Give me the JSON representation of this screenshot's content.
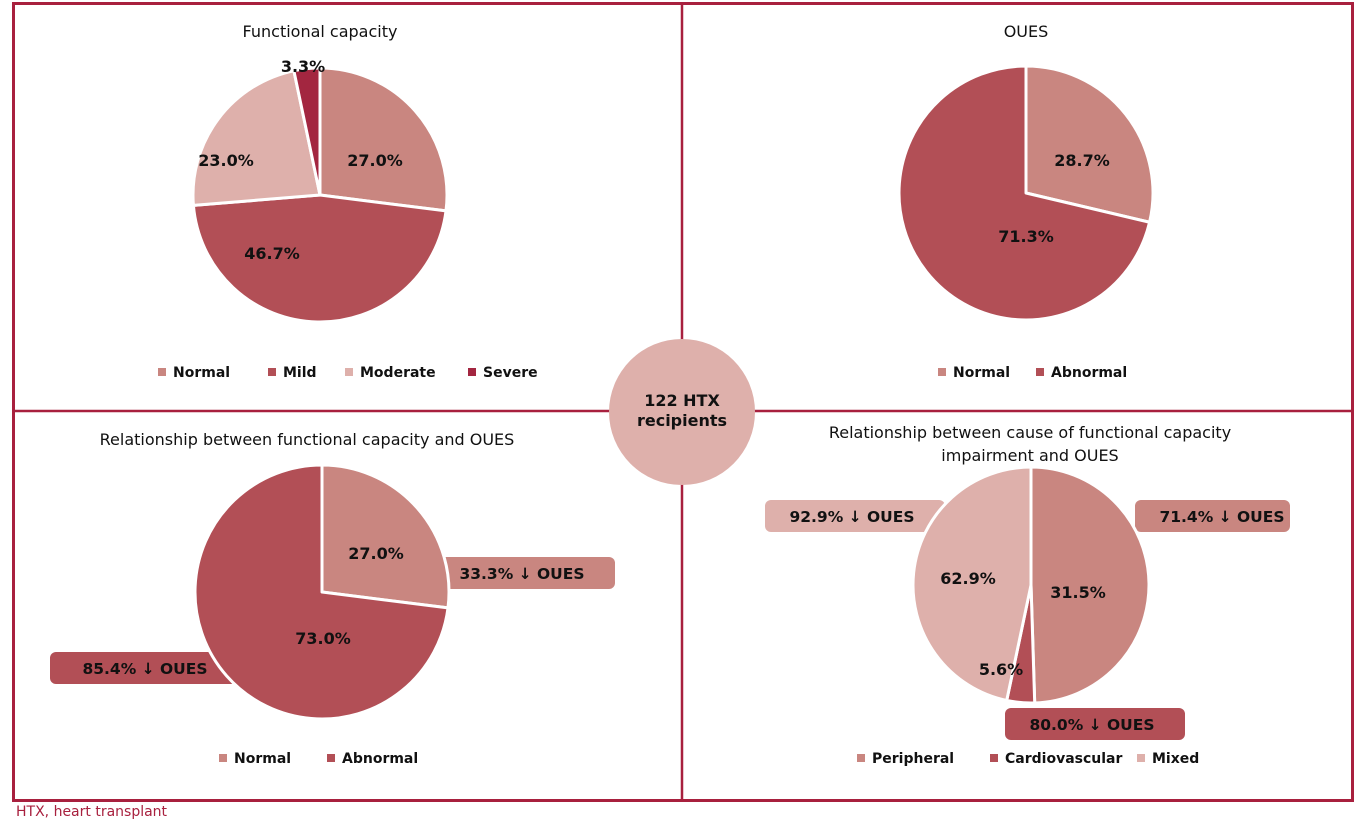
{
  "colors": {
    "frame": "#a8203e",
    "normal": "#c98680",
    "mild": "#b24f56",
    "moderate": "#deb0ab",
    "severe": "#a32640",
    "center_circle": "#deb0ab",
    "callout_light": "#c98680",
    "callout_dark": "#b24f56",
    "callout_pale": "#deb0ab"
  },
  "center": {
    "line1": "122 HTX",
    "line2": "recipients"
  },
  "footer": "HTX, heart transplant",
  "chart_data": [
    {
      "id": "functional-capacity",
      "type": "pie",
      "title": [
        "Functional capacity"
      ],
      "start": "top",
      "direction": "clockwise",
      "slices": [
        {
          "name": "Normal",
          "value": 27.0,
          "label": "27.0%",
          "color": "#c98680"
        },
        {
          "name": "Mild",
          "value": 46.7,
          "label": "46.7%",
          "color": "#b24f56"
        },
        {
          "name": "Moderate",
          "value": 23.0,
          "label": "23.0%",
          "color": "#deb0ab"
        },
        {
          "name": "Severe",
          "value": 3.3,
          "label": "3.3%",
          "color": "#a32640",
          "label_outside": true
        }
      ],
      "legend": [
        "Normal",
        "Mild",
        "Moderate",
        "Severe"
      ],
      "legend_position": "bottom"
    },
    {
      "id": "oues",
      "type": "pie",
      "title": [
        "OUES"
      ],
      "start": "top",
      "direction": "clockwise",
      "slices": [
        {
          "name": "Normal",
          "value": 28.7,
          "label": "28.7%",
          "color": "#c98680"
        },
        {
          "name": "Abnormal",
          "value": 71.3,
          "label": "71.3%",
          "color": "#b24f56"
        }
      ],
      "legend": [
        "Normal",
        "Abnormal"
      ],
      "legend_position": "bottom"
    },
    {
      "id": "fc-vs-oues",
      "type": "pie",
      "title": [
        "Relationship between functional capacity and OUES"
      ],
      "start": "top",
      "direction": "clockwise",
      "slices": [
        {
          "name": "Normal",
          "value": 27.0,
          "label": "27.0%",
          "color": "#c98680",
          "callout": {
            "text": "33.3%",
            "arrow": "down",
            "suffix": "OUES",
            "side": "right"
          }
        },
        {
          "name": "Abnormal",
          "value": 73.0,
          "label": "73.0%",
          "color": "#b24f56",
          "callout": {
            "text": "85.4%",
            "arrow": "down",
            "suffix": "OUES",
            "side": "left"
          }
        }
      ],
      "legend": [
        "Normal",
        "Abnormal"
      ],
      "legend_position": "bottom"
    },
    {
      "id": "cause-vs-oues",
      "type": "pie",
      "title": [
        "Relationship between cause of functional capacity",
        "impairment and OUES"
      ],
      "start": "top",
      "direction": "clockwise",
      "note": "slice labels as printed; drawn wedge sizes differ from printed labels",
      "drawn_share": [
        49.5,
        3.8,
        46.7
      ],
      "slices": [
        {
          "name": "Peripheral",
          "value": 31.5,
          "label": "31.5%",
          "color": "#c98680",
          "callout": {
            "text": "71.4%",
            "arrow": "down",
            "suffix": "OUES",
            "side": "right"
          }
        },
        {
          "name": "Cardiovascular",
          "value": 5.6,
          "label": "5.6%",
          "color": "#b24f56",
          "callout": {
            "text": "80.0%",
            "arrow": "down",
            "suffix": "OUES",
            "side": "bottom"
          }
        },
        {
          "name": "Mixed",
          "value": 62.9,
          "label": "62.9%",
          "color": "#deb0ab",
          "callout": {
            "text": "92.9%",
            "arrow": "down",
            "suffix": "OUES",
            "side": "left"
          }
        }
      ],
      "legend": [
        "Peripheral",
        "Cardiovascular",
        "Mixed"
      ],
      "legend_position": "bottom"
    }
  ]
}
